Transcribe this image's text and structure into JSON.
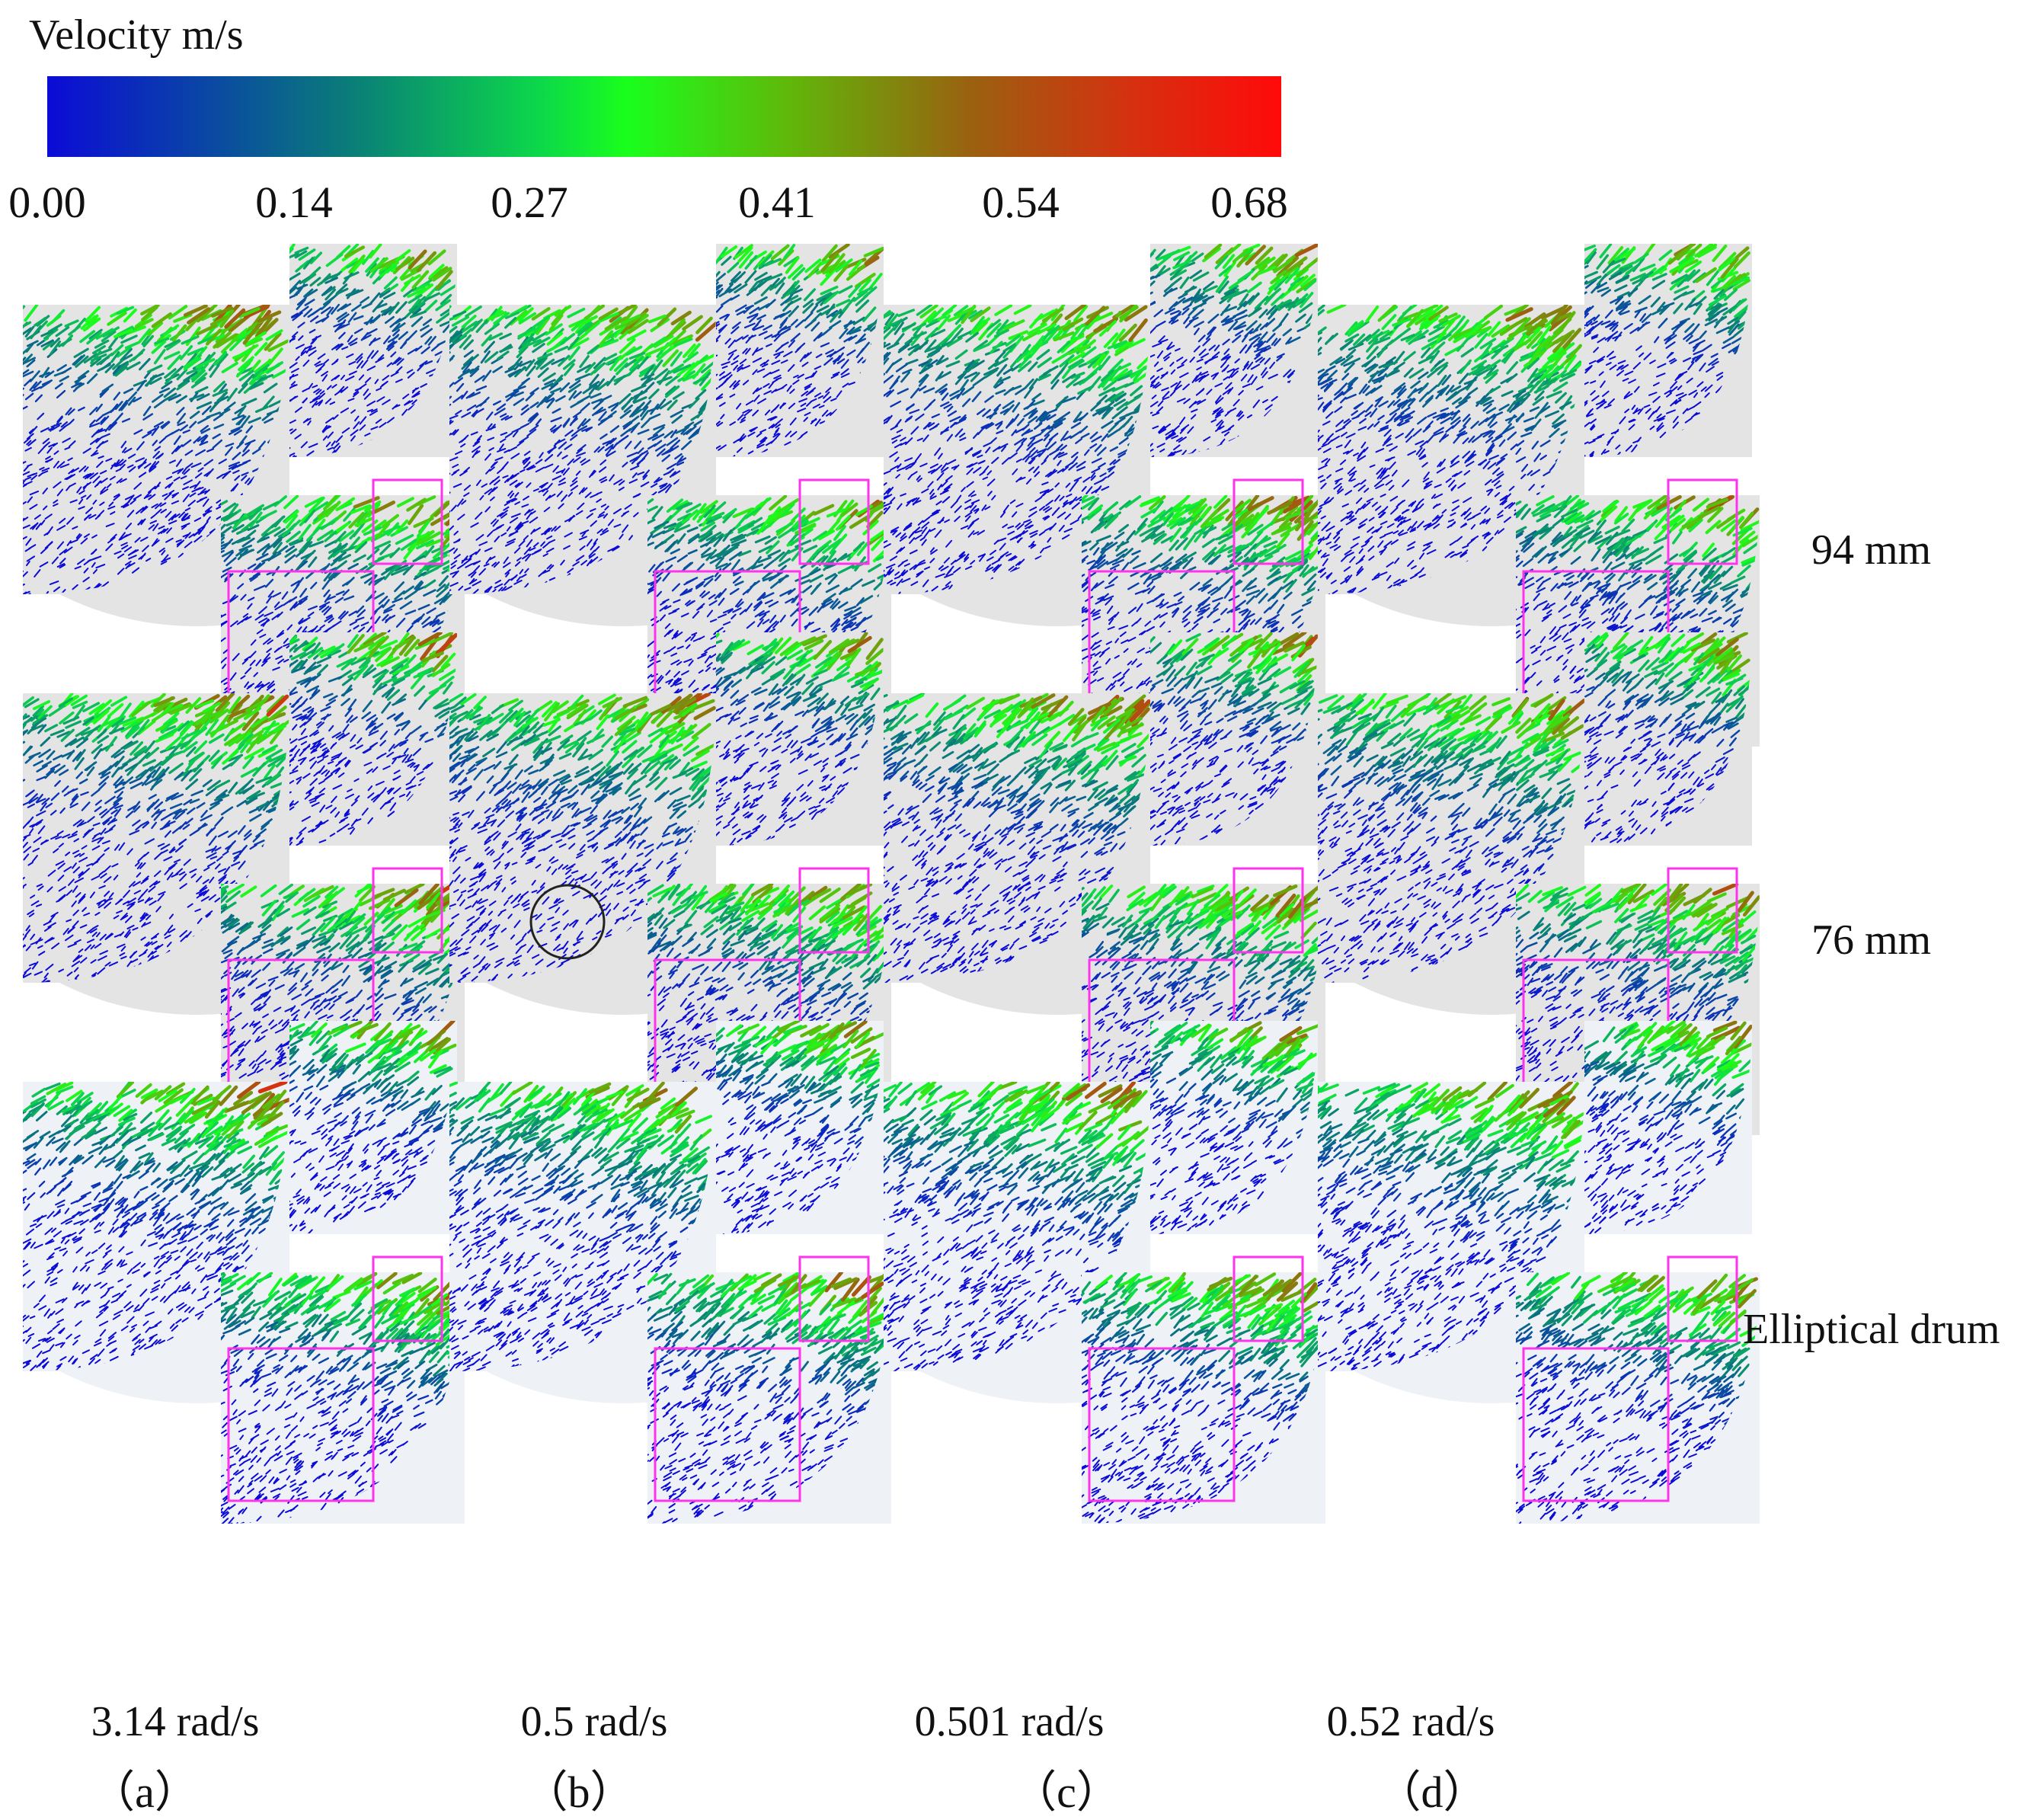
{
  "colorbar": {
    "title": "Velocity m/s",
    "ticks": [
      "0.00",
      "0.14",
      "0.27",
      "0.41",
      "0.54",
      "0.68"
    ],
    "colors": [
      "#0b0bd6",
      "#0a7a7a",
      "#19ff1c",
      "#9b6010",
      "#ff0a0a"
    ]
  },
  "rows": [
    {
      "label": "94 mm"
    },
    {
      "label": "76 mm"
    },
    {
      "label": "Elliptical drum"
    }
  ],
  "columns": [
    {
      "speed": "3.14 rad/s",
      "sub": "（a）"
    },
    {
      "speed": "0.5 rad/s",
      "sub": "（b）"
    },
    {
      "speed": "0.501 rad/s",
      "sub": "（c）"
    },
    {
      "speed": "0.52 rad/s",
      "sub": "（d）"
    }
  ],
  "style": {
    "shade_gray": "#e4e4e4",
    "shade_light": "#eef2f7",
    "highlight_box": "#ff33ee",
    "marker_circle": "#222222"
  }
}
